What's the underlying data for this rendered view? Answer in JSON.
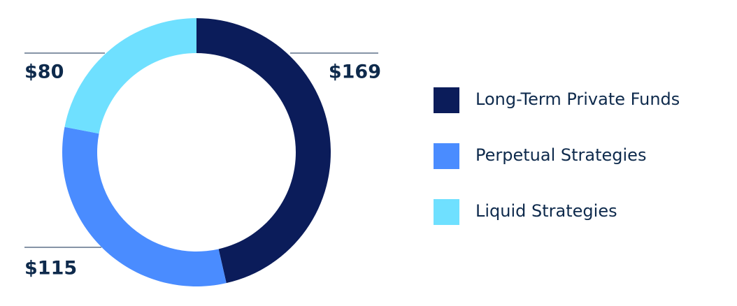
{
  "chart_data": {
    "type": "donut",
    "categories": [
      "Long-Term Private Funds",
      "Perpetual Strategies",
      "Liquid Strategies"
    ],
    "values": [
      169,
      115,
      80
    ],
    "value_labels": [
      "$169",
      "$115",
      "$80"
    ],
    "colors": [
      "#0b1c5a",
      "#4a8cff",
      "#6fe0ff"
    ]
  }
}
